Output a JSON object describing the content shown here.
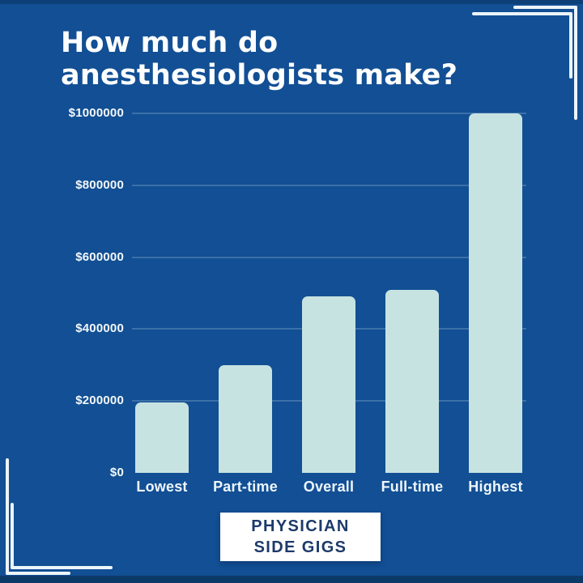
{
  "header": {
    "title_line1": "How much do",
    "title_line2": "anesthesiologists make?"
  },
  "chart_data": {
    "type": "bar",
    "title": "How much do anesthesiologists make?",
    "categories": [
      "Lowest",
      "Part-time",
      "Overall",
      "Full-time",
      "Highest"
    ],
    "values": [
      195000,
      300000,
      490000,
      510000,
      1000000
    ],
    "ylim": [
      0,
      1000000
    ],
    "y_ticks": [
      {
        "value": 1000000,
        "label": "$1000000"
      },
      {
        "value": 800000,
        "label": "$800000"
      },
      {
        "value": 600000,
        "label": "$600000"
      },
      {
        "value": 400000,
        "label": "$400000"
      },
      {
        "value": 200000,
        "label": "$200000"
      },
      {
        "value": 0,
        "label": "$0"
      }
    ],
    "grid": true,
    "legend": "none",
    "xlabel": "",
    "ylabel": "",
    "bar_color": "#c7e3e1",
    "background_color": "#124f94",
    "label_color": "#ffffff"
  },
  "footer": {
    "logo_line1": "PHYSICIAN",
    "logo_line2": "SIDE GIGS"
  }
}
